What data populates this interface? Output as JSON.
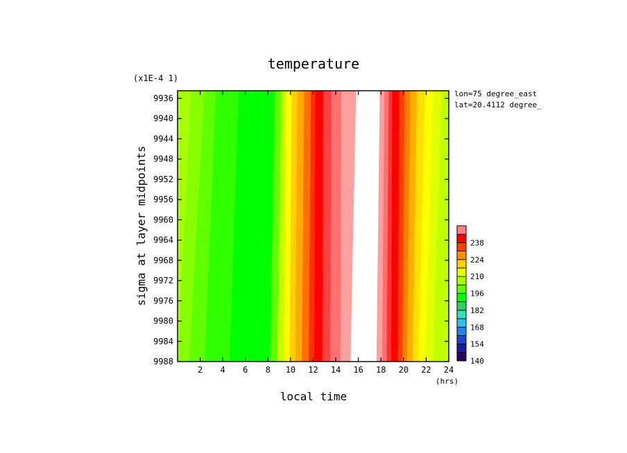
{
  "chart_data": {
    "type": "heatmap",
    "title": "temperature",
    "xlabel": "local time",
    "ylabel": "sigma at layer midpoints",
    "x_unit": "(hrs)",
    "y_scale_note": "(x1E-4 1)",
    "annotations": [
      "lon=75 degree_east",
      "lat=20.4112 degree_"
    ],
    "xlim": [
      0,
      24
    ],
    "ylim": [
      9934.5,
      9988
    ],
    "y_inverted": true,
    "x_ticks": [
      2,
      4,
      6,
      8,
      10,
      12,
      14,
      16,
      18,
      20,
      22,
      24
    ],
    "y_ticks": [
      9936,
      9940,
      9944,
      9948,
      9952,
      9956,
      9960,
      9964,
      9968,
      9972,
      9976,
      9980,
      9984,
      9988
    ],
    "colorbar": {
      "levels": [
        140,
        147,
        154,
        161,
        168,
        175,
        182,
        189,
        196,
        203,
        210,
        217,
        224,
        231,
        238,
        245,
        252
      ],
      "tick_labels": [
        140,
        154,
        168,
        182,
        196,
        210,
        224,
        238
      ],
      "colors": [
        "#2a0060",
        "#1a1aa0",
        "#2040d8",
        "#2080ff",
        "#30c0f0",
        "#30e0b0",
        "#30d060",
        "#00ff00",
        "#60ff00",
        "#a8ff00",
        "#e8ff00",
        "#ffd000",
        "#ff9000",
        "#ff4000",
        "#ff0000",
        "#ff8080",
        "#ffffff"
      ]
    },
    "bands": [
      {
        "x_top": 0.0,
        "x_bottom": 0.0,
        "color": "#a8ff00"
      },
      {
        "x_top": 1.2,
        "x_bottom": 0.0,
        "color": "#88ff00"
      },
      {
        "x_top": 2.4,
        "x_bottom": 1.0,
        "color": "#60ff00"
      },
      {
        "x_top": 3.4,
        "x_bottom": 2.4,
        "color": "#30ff00"
      },
      {
        "x_top": 5.4,
        "x_bottom": 4.6,
        "color": "#00ff00"
      },
      {
        "x_top": 8.6,
        "x_bottom": 8.2,
        "color": "#60ff00"
      },
      {
        "x_top": 9.2,
        "x_bottom": 8.8,
        "color": "#c8ff00"
      },
      {
        "x_top": 9.6,
        "x_bottom": 9.4,
        "color": "#ffff00"
      },
      {
        "x_top": 10.1,
        "x_bottom": 9.9,
        "color": "#ffd000"
      },
      {
        "x_top": 10.6,
        "x_bottom": 10.4,
        "color": "#ffaa00"
      },
      {
        "x_top": 11.2,
        "x_bottom": 11.0,
        "color": "#ff7000"
      },
      {
        "x_top": 11.8,
        "x_bottom": 11.6,
        "color": "#ff3000"
      },
      {
        "x_top": 12.2,
        "x_bottom": 12.1,
        "color": "#ff0000"
      },
      {
        "x_top": 12.9,
        "x_bottom": 12.8,
        "color": "#ff4040"
      },
      {
        "x_top": 13.6,
        "x_bottom": 13.5,
        "color": "#ff7070"
      },
      {
        "x_top": 14.5,
        "x_bottom": 14.4,
        "color": "#ffa0a0"
      },
      {
        "x_top": 15.8,
        "x_bottom": 15.3,
        "color": "#ffffff"
      },
      {
        "x_top": 17.9,
        "x_bottom": 17.6,
        "color": "#ffa0a0"
      },
      {
        "x_top": 18.3,
        "x_bottom": 18.1,
        "color": "#ff7070"
      },
      {
        "x_top": 18.7,
        "x_bottom": 18.5,
        "color": "#ff3030"
      },
      {
        "x_top": 19.0,
        "x_bottom": 18.9,
        "color": "#ff0000"
      },
      {
        "x_top": 19.6,
        "x_bottom": 19.5,
        "color": "#ff4000"
      },
      {
        "x_top": 20.1,
        "x_bottom": 19.9,
        "color": "#ff8000"
      },
      {
        "x_top": 20.6,
        "x_bottom": 20.3,
        "color": "#ffb000"
      },
      {
        "x_top": 21.2,
        "x_bottom": 20.8,
        "color": "#ffe000"
      },
      {
        "x_top": 21.9,
        "x_bottom": 21.3,
        "color": "#ffff00"
      },
      {
        "x_top": 22.6,
        "x_bottom": 21.9,
        "color": "#e0ff00"
      },
      {
        "x_top": 23.4,
        "x_bottom": 22.6,
        "color": "#c0ff00"
      }
    ]
  }
}
